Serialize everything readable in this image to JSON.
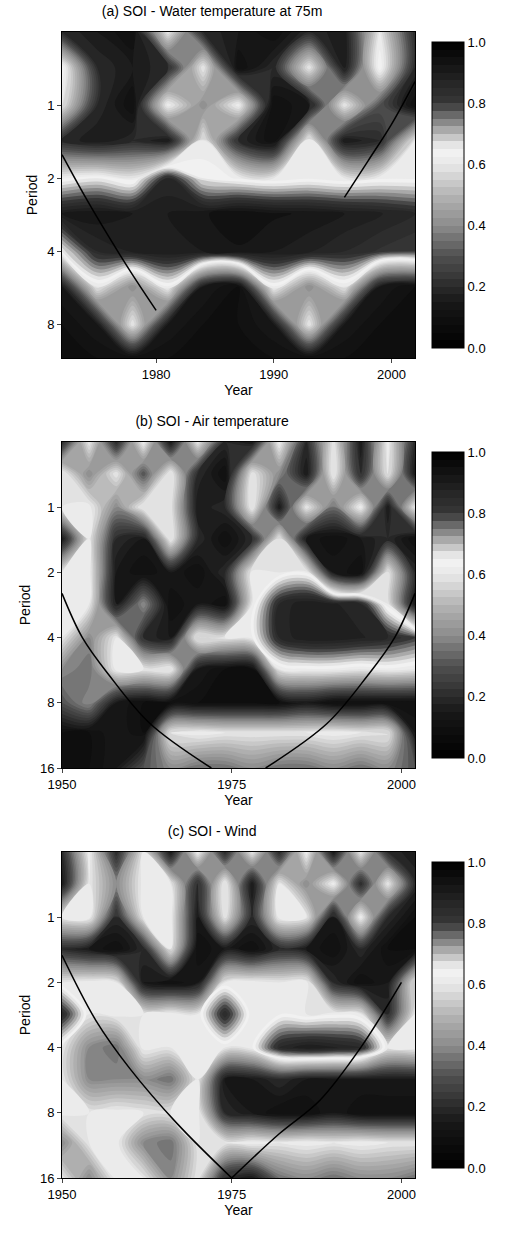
{
  "chart_data": [
    {
      "type": "heatmap",
      "title": "(a) SOI - Water temperature at 75m",
      "x_label": "Year",
      "y_label": "Period",
      "log": "y",
      "grid": false,
      "x": [
        1972,
        1975,
        1978,
        1981,
        1984,
        1987,
        1990,
        1993,
        1996,
        1999,
        2002
      ],
      "y": [
        0.5,
        0.7,
        1,
        1.4,
        2,
        2.8,
        4,
        5.6,
        8,
        11
      ],
      "z": [
        [
          0.2,
          0.15,
          0.1,
          0.6,
          0.2,
          0.15,
          0.1,
          0.2,
          0.15,
          0.6,
          0.2
        ],
        [
          0.65,
          0.2,
          0.15,
          0.2,
          0.6,
          0.1,
          0.2,
          0.6,
          0.15,
          0.65,
          0.2
        ],
        [
          0.6,
          0.2,
          0.1,
          0.62,
          0.4,
          0.62,
          0.1,
          0.15,
          0.6,
          0.3,
          0.1
        ],
        [
          0.2,
          0.15,
          0.2,
          0.15,
          0.6,
          0.2,
          0.1,
          0.62,
          0.15,
          0.2,
          0.6
        ],
        [
          0.62,
          0.65,
          0.6,
          0.85,
          0.65,
          0.62,
          0.6,
          0.62,
          0.6,
          0.62,
          0.62
        ],
        [
          0.9,
          0.92,
          0.9,
          0.9,
          0.92,
          0.95,
          0.93,
          0.92,
          0.9,
          0.88,
          0.85
        ],
        [
          0.65,
          0.85,
          0.88,
          0.9,
          0.9,
          0.92,
          0.9,
          0.88,
          0.85,
          0.82,
          0.8
        ],
        [
          0.15,
          0.6,
          0.4,
          0.62,
          0.15,
          0.1,
          0.62,
          0.4,
          0.6,
          0.15,
          0.1
        ],
        [
          0.1,
          0.15,
          0.6,
          0.15,
          0.1,
          0.1,
          0.15,
          0.6,
          0.15,
          0.1,
          0.1
        ],
        [
          0.1,
          0.1,
          0.1,
          0.1,
          0.1,
          0.1,
          0.1,
          0.1,
          0.1,
          0.1,
          0.1
        ]
      ],
      "xlim": [
        1972,
        2002
      ],
      "xticks": [
        1980,
        1990,
        2000
      ],
      "ylim": [
        11,
        0.5
      ],
      "yticks": [
        1,
        2,
        4,
        8
      ],
      "colorbar": {
        "range": [
          0,
          1
        ],
        "ticks": [
          {
            "value": 0,
            "label": "0.0"
          },
          {
            "value": 0.2,
            "label": "0.2"
          },
          {
            "value": 0.4,
            "label": "0.4"
          },
          {
            "value": 0.6,
            "label": "0.6"
          },
          {
            "value": 0.8,
            "label": "0.8"
          },
          {
            "value": 1,
            "label": "1.0"
          }
        ]
      },
      "series": [
        {
          "type": "line",
          "color": "#000000",
          "x": [
            1972,
            1974,
            1976,
            1978,
            1980
          ],
          "values": [
            1.6,
            2.4,
            3.5,
            5,
            7
          ]
        },
        {
          "type": "line",
          "color": "#000000",
          "x": [
            1996,
            1998,
            2000,
            2002
          ],
          "values": [
            2.4,
            1.7,
            1.2,
            0.8
          ]
        }
      ]
    },
    {
      "type": "heatmap",
      "title": "(b) SOI - Air temperature",
      "x_label": "Year",
      "y_label": "Period",
      "log": "y",
      "grid": false,
      "x": [
        1950,
        1954,
        1958,
        1962,
        1966,
        1970,
        1974,
        1978,
        1982,
        1986,
        1990,
        1994,
        1998,
        2002
      ],
      "y": [
        0.5,
        0.7,
        1,
        1.4,
        2,
        2.8,
        4,
        5.6,
        8,
        11,
        16
      ],
      "z": [
        [
          0.2,
          0.6,
          0.2,
          0.62,
          0.15,
          0.6,
          0.2,
          0.15,
          0.62,
          0.2,
          0.6,
          0.15,
          0.62,
          0.2
        ],
        [
          0.62,
          0.4,
          0.6,
          0.3,
          0.62,
          0.2,
          0.1,
          0.6,
          0.4,
          0.15,
          0.62,
          0.2,
          0.6,
          0.15
        ],
        [
          0.6,
          0.62,
          0.4,
          0.62,
          0.6,
          0.15,
          0.2,
          0.62,
          0.15,
          0.6,
          0.35,
          0.62,
          0.15,
          0.6
        ],
        [
          0.15,
          0.6,
          0.2,
          0.15,
          0.62,
          0.2,
          0.1,
          0.2,
          0.6,
          0.15,
          0.1,
          0.15,
          0.2,
          0.1
        ],
        [
          0.6,
          0.62,
          0.15,
          0.1,
          0.15,
          0.1,
          0.2,
          0.62,
          0.6,
          0.62,
          0.15,
          0.1,
          0.6,
          0.2
        ],
        [
          0.62,
          0.6,
          0.15,
          0.4,
          0.1,
          0.15,
          0.1,
          0.6,
          0.85,
          0.9,
          0.88,
          0.85,
          0.6,
          0.15
        ],
        [
          0.6,
          0.4,
          0.6,
          0.2,
          0.15,
          0.62,
          0.6,
          0.62,
          0.85,
          0.9,
          0.9,
          0.88,
          0.85,
          0.8
        ],
        [
          0.4,
          0.35,
          0.62,
          0.6,
          0.62,
          0.15,
          0.1,
          0.1,
          0.6,
          0.62,
          0.62,
          0.6,
          0.62,
          0.6
        ],
        [
          0.3,
          0.4,
          0.15,
          0.1,
          0.1,
          0.1,
          0.1,
          0.1,
          0.1,
          0.15,
          0.1,
          0.1,
          0.1,
          0.1
        ],
        [
          0.1,
          0.1,
          0.15,
          0.1,
          0.6,
          0.62,
          0.6,
          0.6,
          0.6,
          0.6,
          0.62,
          0.6,
          0.6,
          0.15
        ],
        [
          0.1,
          0.1,
          0.15,
          0.3,
          0.4,
          0.35,
          0.35,
          0.4,
          0.35,
          0.35,
          0.4,
          0.35,
          0.4,
          0.3
        ]
      ],
      "xlim": [
        1950,
        2002
      ],
      "xticks": [
        1950,
        1975,
        2000
      ],
      "ylim": [
        16,
        0.5
      ],
      "yticks": [
        1,
        2,
        4,
        8,
        16
      ],
      "colorbar": {
        "range": [
          0,
          1
        ],
        "ticks": [
          {
            "value": 0,
            "label": "0.0"
          },
          {
            "value": 0.2,
            "label": "0.2"
          },
          {
            "value": 0.4,
            "label": "0.4"
          },
          {
            "value": 0.6,
            "label": "0.6"
          },
          {
            "value": 0.8,
            "label": "0.8"
          },
          {
            "value": 1,
            "label": "1.0"
          }
        ]
      },
      "series": [
        {
          "type": "line",
          "color": "#000000",
          "x": [
            1950,
            1953,
            1957,
            1963,
            1972
          ],
          "values": [
            2.5,
            4,
            6,
            10,
            16
          ]
        },
        {
          "type": "line",
          "color": "#000000",
          "x": [
            1980,
            1989,
            1995,
            1999,
            2002
          ],
          "values": [
            16,
            10,
            6,
            4,
            2.5
          ]
        }
      ]
    },
    {
      "type": "heatmap",
      "title": "(c) SOI - Wind",
      "x_label": "Year",
      "y_label": "Period",
      "log": "y",
      "grid": false,
      "x": [
        1950,
        1954,
        1958,
        1962,
        1966,
        1970,
        1974,
        1978,
        1982,
        1986,
        1990,
        1994,
        1998,
        2002
      ],
      "y": [
        0.5,
        0.7,
        1,
        1.4,
        2,
        2.8,
        4,
        5.6,
        8,
        11,
        16
      ],
      "z": [
        [
          0.2,
          0.62,
          0.2,
          0.6,
          0.15,
          0.62,
          0.2,
          0.6,
          0.2,
          0.62,
          0.15,
          0.6,
          0.2,
          0.15
        ],
        [
          0.15,
          0.6,
          0.4,
          0.62,
          0.6,
          0.2,
          0.62,
          0.15,
          0.6,
          0.4,
          0.62,
          0.2,
          0.6,
          0.2
        ],
        [
          0.6,
          0.62,
          0.2,
          0.6,
          0.62,
          0.15,
          0.6,
          0.2,
          0.62,
          0.6,
          0.15,
          0.62,
          0.2,
          0.1
        ],
        [
          0.2,
          0.15,
          0.1,
          0.2,
          0.6,
          0.1,
          0.15,
          0.1,
          0.2,
          0.15,
          0.1,
          0.2,
          0.1,
          0.1
        ],
        [
          0.6,
          0.62,
          0.6,
          0.15,
          0.1,
          0.15,
          0.6,
          0.62,
          0.6,
          0.62,
          0.2,
          0.1,
          0.15,
          0.6
        ],
        [
          0.85,
          0.6,
          0.62,
          0.6,
          0.62,
          0.6,
          0.85,
          0.6,
          0.62,
          0.6,
          0.62,
          0.6,
          0.2,
          0.6
        ],
        [
          0.6,
          0.4,
          0.35,
          0.62,
          0.6,
          0.62,
          0.6,
          0.62,
          0.85,
          0.9,
          0.88,
          0.85,
          0.6,
          0.62
        ],
        [
          0.6,
          0.4,
          0.4,
          0.4,
          0.35,
          0.6,
          0.15,
          0.15,
          0.2,
          0.15,
          0.15,
          0.15,
          0.15,
          0.15
        ],
        [
          0.62,
          0.6,
          0.62,
          0.6,
          0.6,
          0.62,
          0.2,
          0.15,
          0.1,
          0.1,
          0.15,
          0.1,
          0.1,
          0.1
        ],
        [
          0.4,
          0.6,
          0.62,
          0.4,
          0.35,
          0.6,
          0.6,
          0.62,
          0.6,
          0.62,
          0.6,
          0.62,
          0.6,
          0.6
        ],
        [
          0.6,
          0.4,
          0.62,
          0.6,
          0.4,
          0.6,
          0.2,
          0.15,
          0.35,
          0.4,
          0.35,
          0.4,
          0.4,
          0.35
        ]
      ],
      "xlim": [
        1950,
        2002
      ],
      "xticks": [
        1950,
        1975,
        2000
      ],
      "ylim": [
        16,
        0.5
      ],
      "yticks": [
        1,
        2,
        4,
        8,
        16
      ],
      "colorbar": {
        "range": [
          0,
          1
        ],
        "ticks": [
          {
            "value": 0,
            "label": "0.0"
          },
          {
            "value": 0.2,
            "label": "0.2"
          },
          {
            "value": 0.4,
            "label": "0.4"
          },
          {
            "value": 0.6,
            "label": "0.6"
          },
          {
            "value": 0.8,
            "label": "0.8"
          },
          {
            "value": 1,
            "label": "1.0"
          }
        ]
      },
      "series": [
        {
          "type": "line",
          "color": "#000000",
          "x": [
            1950,
            1955,
            1960,
            1967,
            1975
          ],
          "values": [
            1.5,
            3,
            5,
            9,
            16
          ]
        },
        {
          "type": "line",
          "color": "#000000",
          "x": [
            1975,
            1982,
            1988,
            1994,
            2000
          ],
          "values": [
            16,
            10,
            7,
            4,
            2
          ]
        }
      ]
    }
  ]
}
